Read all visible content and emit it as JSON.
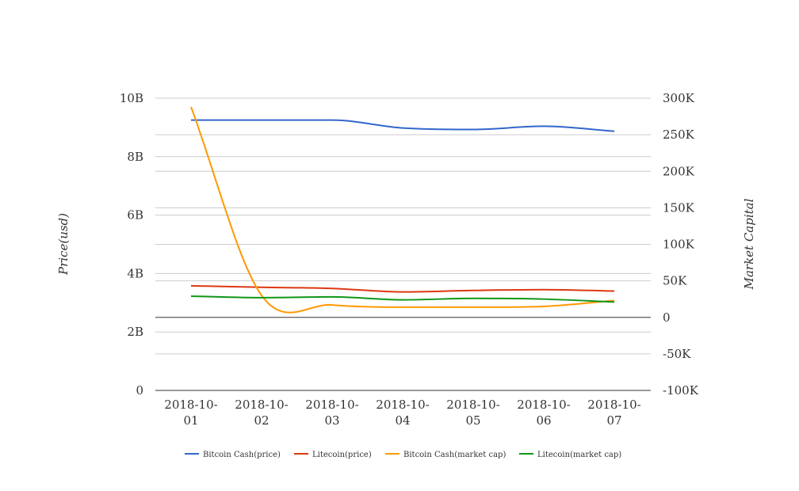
{
  "chart_data": {
    "type": "line",
    "categories": [
      [
        "2018-10-",
        "01"
      ],
      [
        "2018-10-",
        "02"
      ],
      [
        "2018-10-",
        "03"
      ],
      [
        "2018-10-",
        "04"
      ],
      [
        "2018-10-",
        "05"
      ],
      [
        "2018-10-",
        "06"
      ],
      [
        "2018-10-",
        "07"
      ]
    ],
    "left_axis": {
      "label": "Price(usd)",
      "ylim": [
        0,
        10000000000
      ],
      "ticks": [
        {
          "value": 0,
          "label": "0"
        },
        {
          "value": 2000000000,
          "label": "2B"
        },
        {
          "value": 4000000000,
          "label": "4B"
        },
        {
          "value": 6000000000,
          "label": "6B"
        },
        {
          "value": 8000000000,
          "label": "8B"
        },
        {
          "value": 10000000000,
          "label": "10B"
        }
      ]
    },
    "right_axis": {
      "label": "Market Capital",
      "ylim": [
        -100000,
        300000
      ],
      "ticks": [
        {
          "value": -100000,
          "label": "-100K"
        },
        {
          "value": -50000,
          "label": "-50K"
        },
        {
          "value": 0,
          "label": "0"
        },
        {
          "value": 50000,
          "label": "50K"
        },
        {
          "value": 100000,
          "label": "100K"
        },
        {
          "value": 150000,
          "label": "150K"
        },
        {
          "value": 200000,
          "label": "200K"
        },
        {
          "value": 250000,
          "label": "250K"
        },
        {
          "value": 300000,
          "label": "300K"
        }
      ]
    },
    "series": [
      {
        "name": "Bitcoin Cash(price)",
        "axis": "left",
        "color": "#3366cc",
        "values": [
          9250000000,
          9250000000,
          9250000000,
          8980000000,
          8930000000,
          9040000000,
          8870000000
        ]
      },
      {
        "name": "Litecoin(price)",
        "axis": "left",
        "color": "#dc3912",
        "values": [
          3580000000,
          3530000000,
          3490000000,
          3370000000,
          3420000000,
          3450000000,
          3400000000
        ]
      },
      {
        "name": "Bitcoin Cash(market cap)",
        "axis": "right",
        "color": "#ff9900",
        "values": [
          288000,
          30000,
          17000,
          14000,
          14000,
          15000,
          23000
        ]
      },
      {
        "name": "Litecoin(market cap)",
        "axis": "right",
        "color": "#109618",
        "values": [
          29000,
          27000,
          28000,
          24000,
          26000,
          25000,
          21000
        ]
      }
    ],
    "grid": true,
    "legend_position": "bottom"
  }
}
